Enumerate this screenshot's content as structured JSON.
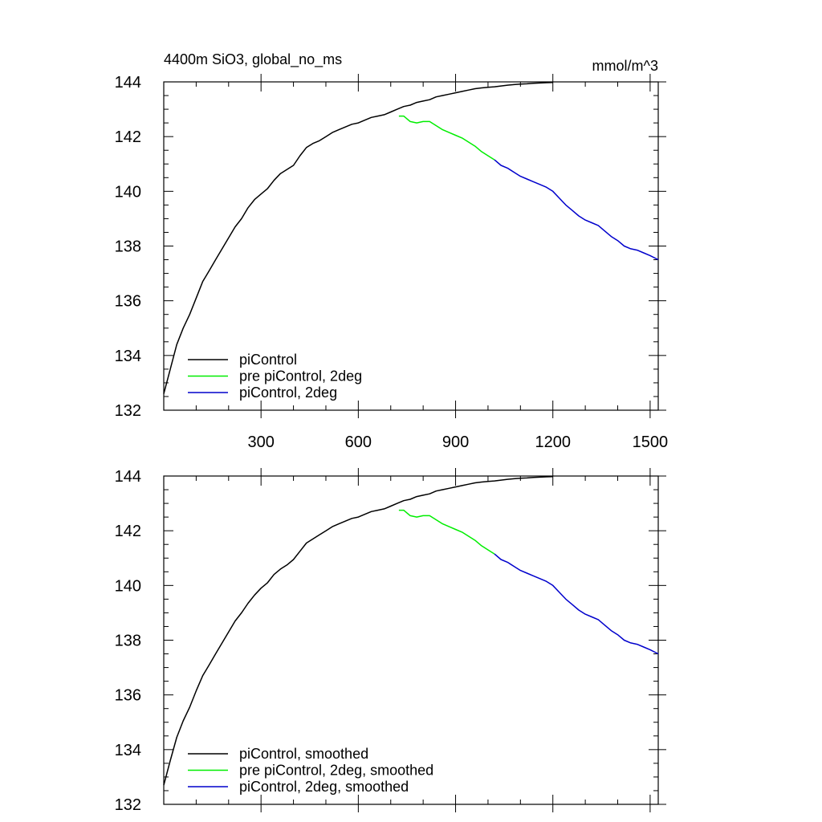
{
  "chart_data": [
    {
      "type": "line",
      "title": "4400m SiO3, global_no_ms",
      "units": "mmol/m^3",
      "xlim": [
        0,
        1525
      ],
      "ylim": [
        132,
        144
      ],
      "xticks": [
        300,
        600,
        900,
        1200,
        1500
      ],
      "yticks": [
        132,
        134,
        136,
        138,
        140,
        142,
        144
      ],
      "show_xtick_labels": true,
      "legend_placement": "bottom-left",
      "grid": false,
      "series": [
        {
          "name": "piControl",
          "color": "#000000",
          "x": [
            0,
            20,
            40,
            60,
            80,
            100,
            120,
            140,
            160,
            180,
            200,
            220,
            240,
            260,
            280,
            300,
            320,
            340,
            360,
            380,
            400,
            420,
            440,
            460,
            480,
            500,
            520,
            540,
            560,
            580,
            600,
            620,
            640,
            660,
            680,
            700,
            720,
            740,
            760,
            780,
            800,
            820,
            840,
            860,
            880,
            900,
            920,
            940,
            960,
            980,
            1000,
            1020,
            1040,
            1060,
            1080,
            1100,
            1120,
            1140,
            1160,
            1180,
            1200
          ],
          "y": [
            132.6,
            133.5,
            134.4,
            135.0,
            135.5,
            136.1,
            136.7,
            137.1,
            137.5,
            137.9,
            138.3,
            138.7,
            139.0,
            139.4,
            139.7,
            139.9,
            140.1,
            140.4,
            140.65,
            140.8,
            140.95,
            141.3,
            141.6,
            141.75,
            141.85,
            142.0,
            142.15,
            142.25,
            142.35,
            142.45,
            142.5,
            142.6,
            142.7,
            142.75,
            142.8,
            142.9,
            143.0,
            143.1,
            143.15,
            143.25,
            143.3,
            143.35,
            143.45,
            143.5,
            143.55,
            143.6,
            143.65,
            143.7,
            143.75,
            143.78,
            143.8,
            143.82,
            143.85,
            143.88,
            143.9,
            143.92,
            143.93,
            143.95,
            143.96,
            143.97,
            143.98
          ]
        },
        {
          "name": "pre piControl, 2deg",
          "color": "#00ee00",
          "x": [
            725,
            740,
            760,
            780,
            800,
            820,
            840,
            860,
            880,
            900,
            920,
            940,
            960,
            980,
            1000,
            1020
          ],
          "y": [
            142.75,
            142.75,
            142.55,
            142.5,
            142.55,
            142.55,
            142.4,
            142.25,
            142.15,
            142.05,
            141.95,
            141.8,
            141.65,
            141.45,
            141.3,
            141.15
          ]
        },
        {
          "name": "piControl, 2deg",
          "color": "#0000cc",
          "x": [
            1020,
            1040,
            1060,
            1080,
            1100,
            1120,
            1140,
            1160,
            1180,
            1200,
            1220,
            1240,
            1260,
            1280,
            1300,
            1320,
            1340,
            1360,
            1380,
            1400,
            1420,
            1440,
            1460,
            1480,
            1500,
            1525
          ],
          "y": [
            141.15,
            140.95,
            140.85,
            140.7,
            140.55,
            140.45,
            140.35,
            140.25,
            140.15,
            140.0,
            139.75,
            139.5,
            139.3,
            139.1,
            138.95,
            138.85,
            138.75,
            138.55,
            138.35,
            138.2,
            138.0,
            137.9,
            137.85,
            137.75,
            137.65,
            137.5
          ]
        }
      ]
    },
    {
      "type": "line",
      "title": "",
      "units": "",
      "xlim": [
        0,
        1525
      ],
      "ylim": [
        132,
        144
      ],
      "xticks": [
        300,
        600,
        900,
        1200,
        1500
      ],
      "yticks": [
        132,
        134,
        136,
        138,
        140,
        142,
        144
      ],
      "show_xtick_labels": false,
      "legend_placement": "bottom-left",
      "grid": false,
      "series": [
        {
          "name": "piControl, smoothed",
          "color": "#000000",
          "x": [
            0,
            20,
            40,
            60,
            80,
            100,
            120,
            140,
            160,
            180,
            200,
            220,
            240,
            260,
            280,
            300,
            320,
            340,
            360,
            380,
            400,
            420,
            440,
            460,
            480,
            500,
            520,
            540,
            560,
            580,
            600,
            620,
            640,
            660,
            680,
            700,
            720,
            740,
            760,
            780,
            800,
            820,
            840,
            860,
            880,
            900,
            920,
            940,
            960,
            980,
            1000,
            1020,
            1040,
            1060,
            1080,
            1100,
            1120,
            1140,
            1160,
            1180,
            1200
          ],
          "y": [
            132.7,
            133.6,
            134.45,
            135.05,
            135.55,
            136.15,
            136.7,
            137.1,
            137.5,
            137.9,
            138.3,
            138.7,
            139.0,
            139.35,
            139.65,
            139.9,
            140.1,
            140.4,
            140.6,
            140.75,
            140.95,
            141.25,
            141.55,
            141.7,
            141.85,
            142.0,
            142.15,
            142.25,
            142.35,
            142.45,
            142.5,
            142.6,
            142.7,
            142.75,
            142.8,
            142.9,
            143.0,
            143.1,
            143.15,
            143.25,
            143.3,
            143.35,
            143.45,
            143.5,
            143.55,
            143.6,
            143.65,
            143.7,
            143.75,
            143.78,
            143.8,
            143.82,
            143.85,
            143.88,
            143.9,
            143.92,
            143.93,
            143.95,
            143.96,
            143.97,
            143.98
          ]
        },
        {
          "name": "pre piControl, 2deg, smoothed",
          "color": "#00ee00",
          "x": [
            725,
            740,
            760,
            780,
            800,
            820,
            840,
            860,
            880,
            900,
            920,
            940,
            960,
            980,
            1000,
            1020
          ],
          "y": [
            142.75,
            142.75,
            142.55,
            142.5,
            142.55,
            142.55,
            142.4,
            142.25,
            142.15,
            142.05,
            141.95,
            141.8,
            141.65,
            141.45,
            141.3,
            141.15
          ]
        },
        {
          "name": "piControl, 2deg, smoothed",
          "color": "#0000cc",
          "x": [
            1020,
            1040,
            1060,
            1080,
            1100,
            1120,
            1140,
            1160,
            1180,
            1200,
            1220,
            1240,
            1260,
            1280,
            1300,
            1320,
            1340,
            1360,
            1380,
            1400,
            1420,
            1440,
            1460,
            1480,
            1500,
            1525
          ],
          "y": [
            141.15,
            140.95,
            140.85,
            140.7,
            140.55,
            140.45,
            140.35,
            140.25,
            140.15,
            140.0,
            139.75,
            139.5,
            139.3,
            139.1,
            138.95,
            138.85,
            138.75,
            138.55,
            138.35,
            138.2,
            138.0,
            137.9,
            137.85,
            137.75,
            137.65,
            137.5
          ]
        }
      ]
    }
  ]
}
